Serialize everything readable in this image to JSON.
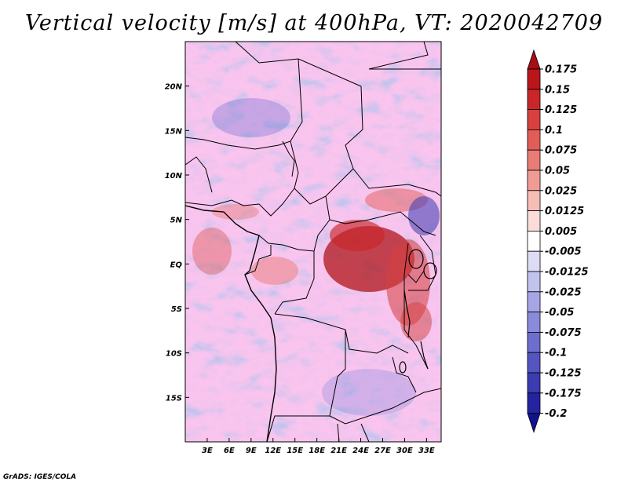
{
  "title": "Vertical velocity [m/s] at 400hPa, VT: 2020042709",
  "credit": "GrADS: IGES/COLA",
  "map": {
    "lon_range": [
      0,
      35
    ],
    "lat_range": [
      -20,
      25
    ],
    "lon_ticks": [
      3,
      6,
      9,
      12,
      15,
      18,
      21,
      24,
      27,
      30,
      33
    ],
    "lon_tick_labels": [
      "3E",
      "6E",
      "9E",
      "12E",
      "15E",
      "18E",
      "21E",
      "24E",
      "27E",
      "30E",
      "33E"
    ],
    "lat_ticks": [
      20,
      15,
      10,
      5,
      0,
      -5,
      -10,
      -15
    ],
    "lat_tick_labels": [
      "20N",
      "15N",
      "10N",
      "5N",
      "EQ",
      "5S",
      "10S",
      "15S"
    ]
  },
  "colorbar": {
    "levels": [
      "0.175",
      "0.15",
      "0.125",
      "0.1",
      "0.075",
      "0.05",
      "0.025",
      "0.0125",
      "0.005",
      "-0.005",
      "-0.0125",
      "-0.025",
      "-0.05",
      "-0.075",
      "-0.1",
      "-0.125",
      "-0.175",
      "-0.2"
    ],
    "colors": [
      "#a50f15",
      "#b8161b",
      "#c8262a",
      "#d6403e",
      "#e15d58",
      "#ea7c76",
      "#f19b95",
      "#f6bcb6",
      "#fadcd8",
      "#ffffff",
      "#dcdcf5",
      "#c2c2ef",
      "#a6a6e6",
      "#8b8bdc",
      "#6e6ed0",
      "#5454c2",
      "#3b3bb2",
      "#2424a0",
      "#12128a"
    ]
  }
}
